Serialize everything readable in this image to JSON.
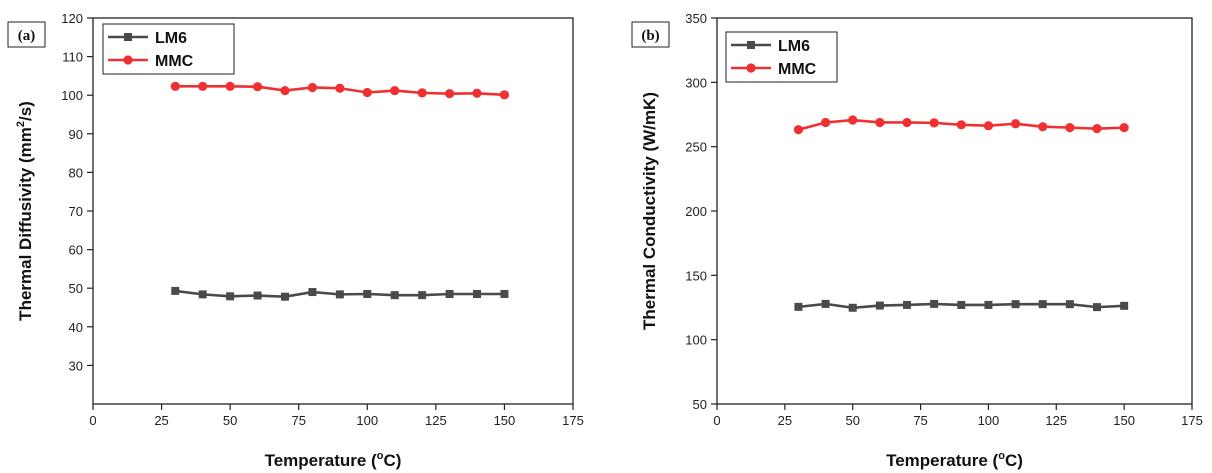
{
  "chart_data": [
    {
      "type": "line",
      "panel_label": "(a)",
      "xlabel": "Temperature (°C)",
      "xlabel_parts": {
        "pre": "Temperature (",
        "sup": "o",
        "post": "C)"
      },
      "ylabel": "Thermal Diffusivity (mm²/s)",
      "ylabel_parts": {
        "pre": "Thermal Diffusivity (mm",
        "sup": "2",
        "post": "/s)"
      },
      "xlim": [
        0,
        175
      ],
      "ylim": [
        20,
        120
      ],
      "xticks": [
        0,
        25,
        50,
        75,
        100,
        125,
        150,
        175
      ],
      "yticks": [
        30,
        40,
        50,
        60,
        70,
        80,
        90,
        100,
        110,
        120
      ],
      "x": [
        30,
        40,
        50,
        60,
        70,
        80,
        90,
        100,
        110,
        120,
        130,
        140,
        150
      ],
      "legend_position": "top-left",
      "grid": false,
      "series": [
        {
          "name": "LM6",
          "color": "#4a4a4a",
          "marker": "square",
          "values": [
            49.3,
            48.4,
            47.9,
            48.1,
            47.8,
            49.0,
            48.4,
            48.5,
            48.2,
            48.2,
            48.5,
            48.5,
            48.5
          ]
        },
        {
          "name": "MMC",
          "color": "#f03030",
          "marker": "circle",
          "values": [
            102.3,
            102.3,
            102.3,
            102.2,
            101.2,
            102.0,
            101.8,
            100.7,
            101.2,
            100.6,
            100.4,
            100.5,
            100.1
          ]
        }
      ]
    },
    {
      "type": "line",
      "panel_label": "(b)",
      "xlabel": "Temperature (°C)",
      "xlabel_parts": {
        "pre": "Temperature (",
        "sup": "o",
        "post": "C)"
      },
      "ylabel": "Thermal Conductivity (W/mK)",
      "ylabel_parts": {
        "pre": "Thermal Conductivity (W/mK)",
        "sup": "",
        "post": ""
      },
      "xlim": [
        0,
        175
      ],
      "ylim": [
        50,
        350
      ],
      "xticks": [
        0,
        25,
        50,
        75,
        100,
        125,
        150,
        175
      ],
      "yticks": [
        50,
        100,
        150,
        200,
        250,
        300,
        350
      ],
      "x": [
        30,
        40,
        50,
        60,
        70,
        80,
        90,
        100,
        110,
        120,
        130,
        140,
        150
      ],
      "legend_position": "top-left",
      "grid": false,
      "series": [
        {
          "name": "LM6",
          "color": "#4a4a4a",
          "marker": "square",
          "values": [
            125.5,
            127.8,
            124.8,
            126.5,
            127.0,
            127.8,
            127.0,
            127.0,
            127.6,
            127.6,
            127.6,
            125.3,
            126.3
          ]
        },
        {
          "name": "MMC",
          "color": "#f03030",
          "marker": "circle",
          "values": [
            263.2,
            268.8,
            270.7,
            268.8,
            268.8,
            268.5,
            267.0,
            266.3,
            267.8,
            265.5,
            264.8,
            264.0,
            264.8
          ]
        }
      ]
    }
  ]
}
